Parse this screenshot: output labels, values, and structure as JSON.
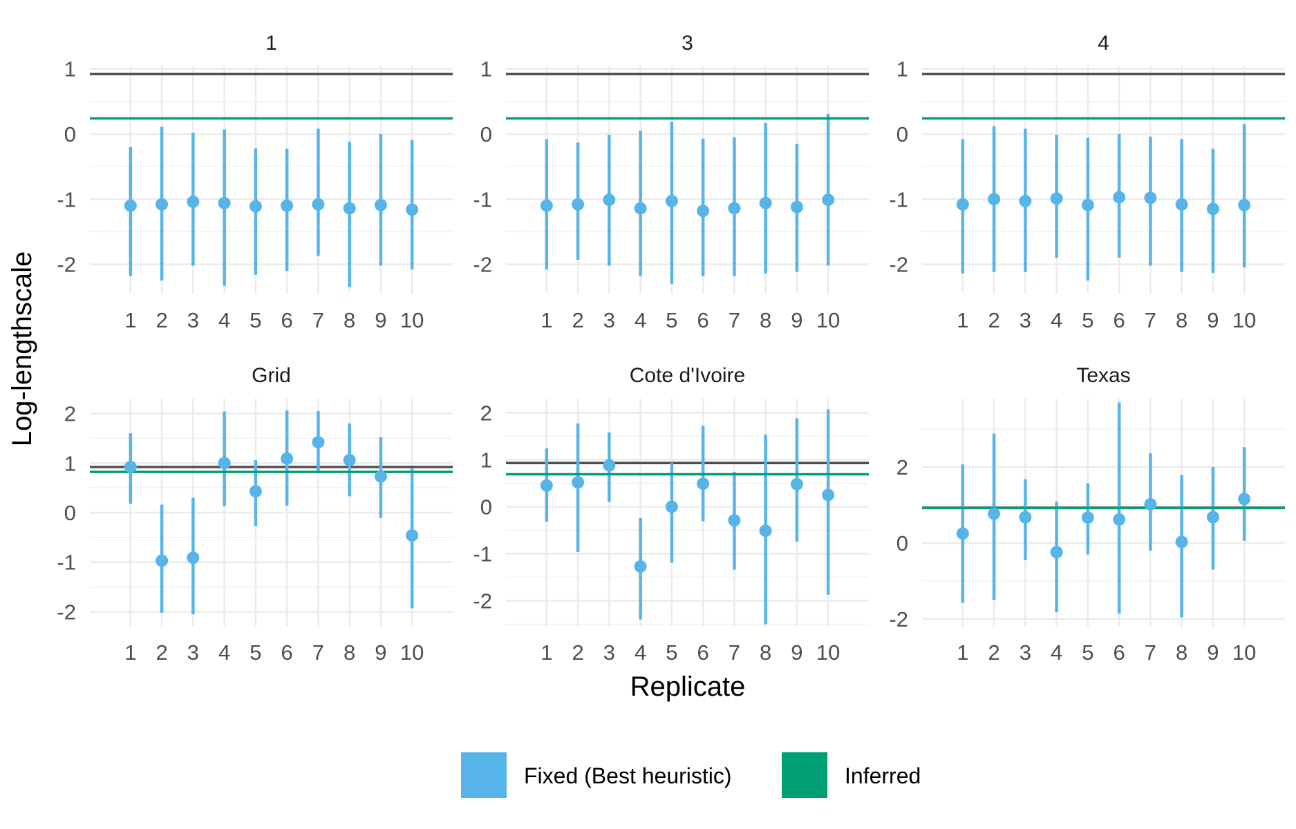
{
  "chart_data": {
    "type": "scatter",
    "xlabel": "Replicate",
    "ylabel": "Log-lengthscale",
    "legend": {
      "placement": "bottom",
      "items": [
        {
          "label": "Fixed (Best heuristic)",
          "color": "#56B4E9"
        },
        {
          "label": "Inferred",
          "color": "#009E73"
        }
      ]
    },
    "colors": {
      "fixed": "#56B4E9",
      "inferred": "#009E73",
      "reference": "#4d4d4d"
    },
    "x": [
      "1",
      "2",
      "3",
      "4",
      "5",
      "6",
      "7",
      "8",
      "9",
      "10"
    ],
    "grid": true,
    "panels": [
      {
        "title": "1",
        "ylim": [
          -2.45,
          1.05
        ],
        "yticks": [
          -2,
          -1,
          0,
          1
        ],
        "reference_line": 0.92,
        "inferred_line": 0.24,
        "points": [
          -1.1,
          -1.08,
          -1.04,
          -1.06,
          -1.11,
          -1.1,
          -1.08,
          -1.14,
          -1.09,
          -1.16
        ],
        "lower": [
          -2.18,
          -2.25,
          -2.02,
          -2.33,
          -2.16,
          -2.1,
          -1.87,
          -2.35,
          -2.02,
          -2.08
        ],
        "upper": [
          -0.2,
          0.11,
          0.02,
          0.07,
          -0.22,
          -0.23,
          0.08,
          -0.12,
          0.0,
          -0.09
        ]
      },
      {
        "title": "3",
        "ylim": [
          -2.45,
          1.05
        ],
        "yticks": [
          -2,
          -1,
          0,
          1
        ],
        "reference_line": 0.92,
        "inferred_line": 0.24,
        "points": [
          -1.1,
          -1.08,
          -1.01,
          -1.14,
          -1.03,
          -1.18,
          -1.14,
          -1.06,
          -1.12,
          -1.01
        ],
        "lower": [
          -2.08,
          -1.93,
          -2.02,
          -2.18,
          -2.3,
          -2.18,
          -2.18,
          -2.14,
          -2.12,
          -2.02
        ],
        "upper": [
          -0.08,
          -0.13,
          -0.01,
          0.05,
          0.19,
          -0.07,
          -0.05,
          0.17,
          -0.15,
          0.31
        ]
      },
      {
        "title": "4",
        "ylim": [
          -2.45,
          1.05
        ],
        "yticks": [
          -2,
          -1,
          0,
          1
        ],
        "reference_line": 0.92,
        "inferred_line": 0.24,
        "points": [
          -1.08,
          -1.0,
          -1.03,
          -0.99,
          -1.09,
          -0.97,
          -0.98,
          -1.08,
          -1.15,
          -1.09
        ],
        "lower": [
          -2.14,
          -2.12,
          -2.12,
          -1.9,
          -2.25,
          -1.9,
          -2.02,
          -2.12,
          -2.13,
          -2.05
        ],
        "upper": [
          -0.08,
          0.12,
          0.08,
          -0.01,
          -0.06,
          0.0,
          -0.04,
          -0.08,
          -0.23,
          0.15
        ]
      },
      {
        "title": "Grid",
        "ylim": [
          -2.3,
          2.3
        ],
        "yticks": [
          -2,
          -1,
          0,
          1,
          2
        ],
        "reference_line": 0.92,
        "inferred_line": 0.82,
        "points": [
          0.92,
          -0.97,
          -0.91,
          1.0,
          0.43,
          1.09,
          1.42,
          1.06,
          0.73,
          -0.46
        ],
        "lower": [
          0.18,
          -2.02,
          -2.05,
          0.13,
          -0.27,
          0.14,
          0.82,
          0.33,
          -0.11,
          -1.93
        ],
        "upper": [
          1.6,
          0.16,
          0.3,
          2.04,
          1.06,
          2.06,
          2.05,
          1.8,
          1.52,
          0.9
        ]
      },
      {
        "title": "Cote d'Ivoire",
        "ylim": [
          -2.55,
          2.3
        ],
        "yticks": [
          -2,
          -1,
          0,
          1,
          2
        ],
        "reference_line": 0.93,
        "inferred_line": 0.69,
        "points": [
          0.45,
          0.52,
          0.88,
          -1.27,
          0.0,
          0.49,
          -0.29,
          -0.51,
          0.48,
          0.25
        ],
        "lower": [
          -0.32,
          -0.96,
          0.1,
          -2.4,
          -1.19,
          -0.31,
          -1.34,
          -2.5,
          -0.74,
          -1.87
        ],
        "upper": [
          1.24,
          1.77,
          1.58,
          -0.24,
          0.94,
          1.72,
          0.74,
          1.53,
          1.88,
          2.07
        ]
      },
      {
        "title": "Texas",
        "ylim": [
          -2.2,
          3.8
        ],
        "yticks": [
          -2,
          0,
          2
        ],
        "reference_line": 0.93,
        "inferred_line": 0.92,
        "points": [
          0.25,
          0.77,
          0.68,
          -0.24,
          0.67,
          0.62,
          1.02,
          0.03,
          0.68,
          1.16
        ],
        "lower": [
          -1.58,
          -1.5,
          -0.45,
          -1.82,
          -0.3,
          -1.86,
          -0.2,
          -1.96,
          -0.7,
          0.06
        ],
        "upper": [
          2.07,
          2.88,
          1.68,
          1.09,
          1.57,
          3.7,
          2.36,
          1.79,
          2.0,
          2.52
        ]
      }
    ]
  }
}
